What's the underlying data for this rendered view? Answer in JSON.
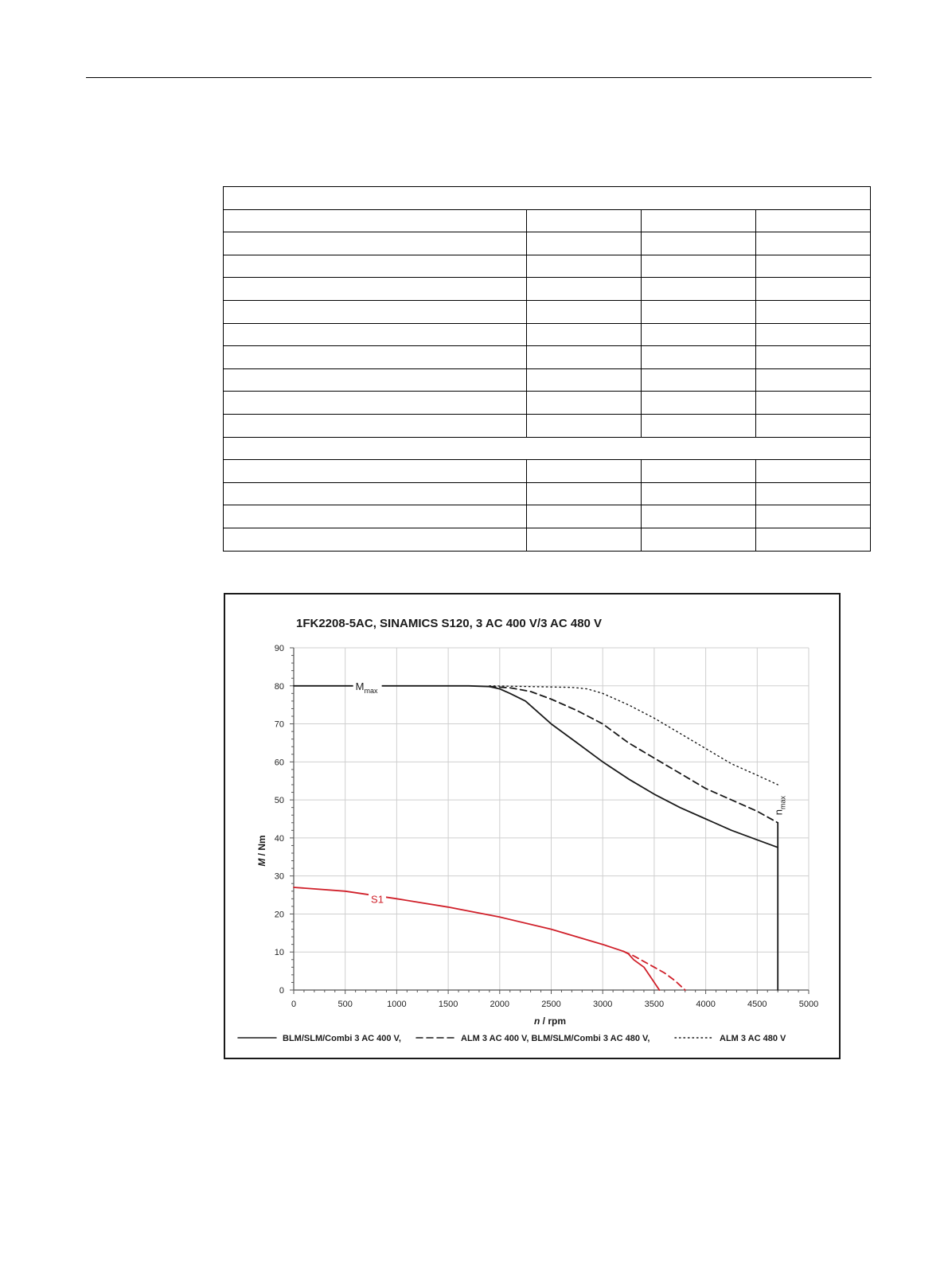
{
  "page": {
    "header_rule": true
  },
  "spec_table": {
    "rows": [
      {
        "kind": "span"
      },
      {
        "kind": "cells"
      },
      {
        "kind": "cells"
      },
      {
        "kind": "cells"
      },
      {
        "kind": "cells"
      },
      {
        "kind": "cells"
      },
      {
        "kind": "cells"
      },
      {
        "kind": "cells"
      },
      {
        "kind": "cells"
      },
      {
        "kind": "cells"
      },
      {
        "kind": "cells"
      },
      {
        "kind": "span"
      },
      {
        "kind": "cells"
      },
      {
        "kind": "cells"
      },
      {
        "kind": "cells"
      },
      {
        "kind": "cells"
      }
    ]
  },
  "chart_data": {
    "type": "line",
    "title": "1FK2208-5AC,  SINAMICS S120,  3 AC 400 V/3 AC 480 V",
    "xlabel_var": "n",
    "xlabel_unit": " / rpm",
    "ylabel_var": "M",
    "ylabel_unit": " / Nm",
    "xlim": [
      0,
      5000
    ],
    "ylim": [
      0,
      90
    ],
    "x_ticks": [
      0,
      500,
      1000,
      1500,
      2000,
      2500,
      3000,
      3500,
      4000,
      4500,
      5000
    ],
    "y_ticks": [
      0,
      10,
      20,
      30,
      40,
      50,
      60,
      70,
      80,
      90
    ],
    "grid": true,
    "legend_position": "bottom",
    "colors": {
      "black": "#1a1a1a",
      "red": "#d0202a",
      "grid": "#cfcfcf"
    },
    "annotations": [
      {
        "id": "mmax",
        "text": "M",
        "sub": "max",
        "x": 600,
        "y": 80
      },
      {
        "id": "s1",
        "text": "S1",
        "x": 750,
        "y": 24
      },
      {
        "id": "nmax",
        "text": "n",
        "sub": "max",
        "x": 4740,
        "y": 46
      }
    ],
    "legend": [
      {
        "style": "solid",
        "label": "BLM/SLM/Combi 3 AC 400 V,"
      },
      {
        "style": "dashed",
        "label": "ALM 3 AC 400 V, BLM/SLM/Combi 3 AC 480 V,"
      },
      {
        "style": "dotted",
        "label": "ALM 3 AC 480 V"
      }
    ],
    "series": [
      {
        "id": "mmax-solid",
        "style": "solid",
        "color": "black",
        "x": [
          0,
          1700,
          1900,
          2000,
          2100,
          2250,
          2500,
          2750,
          3000,
          3250,
          3500,
          3750,
          4000,
          4250,
          4500,
          4700
        ],
        "y": [
          80,
          80,
          79.8,
          79.2,
          78,
          76,
          70,
          65,
          60,
          55.5,
          51.5,
          48,
          45,
          42,
          39.5,
          37.5
        ]
      },
      {
        "id": "mmax-dashed",
        "style": "dashed",
        "color": "black",
        "x": [
          1900,
          2100,
          2300,
          2500,
          2750,
          3000,
          3250,
          3500,
          3750,
          4000,
          4250,
          4500,
          4700
        ],
        "y": [
          79.8,
          79.5,
          78.5,
          76.5,
          73.5,
          70,
          65,
          61,
          57,
          53,
          50,
          47,
          44
        ]
      },
      {
        "id": "mmax-dotted",
        "style": "dotted",
        "color": "black",
        "x": [
          1900,
          2300,
          2700,
          2850,
          3000,
          3250,
          3500,
          3750,
          4000,
          4250,
          4500,
          4700
        ],
        "y": [
          80,
          79.8,
          79.6,
          79.2,
          78,
          75,
          71.5,
          67.5,
          63.5,
          59.5,
          56.5,
          54
        ]
      },
      {
        "id": "nmax-line",
        "style": "solid",
        "color": "black",
        "x": [
          4700,
          4700
        ],
        "y": [
          0,
          44
        ]
      },
      {
        "id": "s1-solid",
        "style": "solid",
        "color": "red",
        "x": [
          0,
          500,
          1000,
          1500,
          2000,
          2500,
          3000,
          3200,
          3250,
          3300,
          3400,
          3550
        ],
        "y": [
          27,
          26,
          24,
          21.8,
          19.2,
          16,
          12,
          10.2,
          9.5,
          8,
          6,
          0
        ]
      },
      {
        "id": "s1-dashed",
        "style": "dashed",
        "color": "red",
        "x": [
          3200,
          3300,
          3400,
          3500,
          3600,
          3700,
          3800
        ],
        "y": [
          10.2,
          9,
          7.5,
          6,
          4.5,
          2.5,
          0
        ]
      }
    ]
  }
}
